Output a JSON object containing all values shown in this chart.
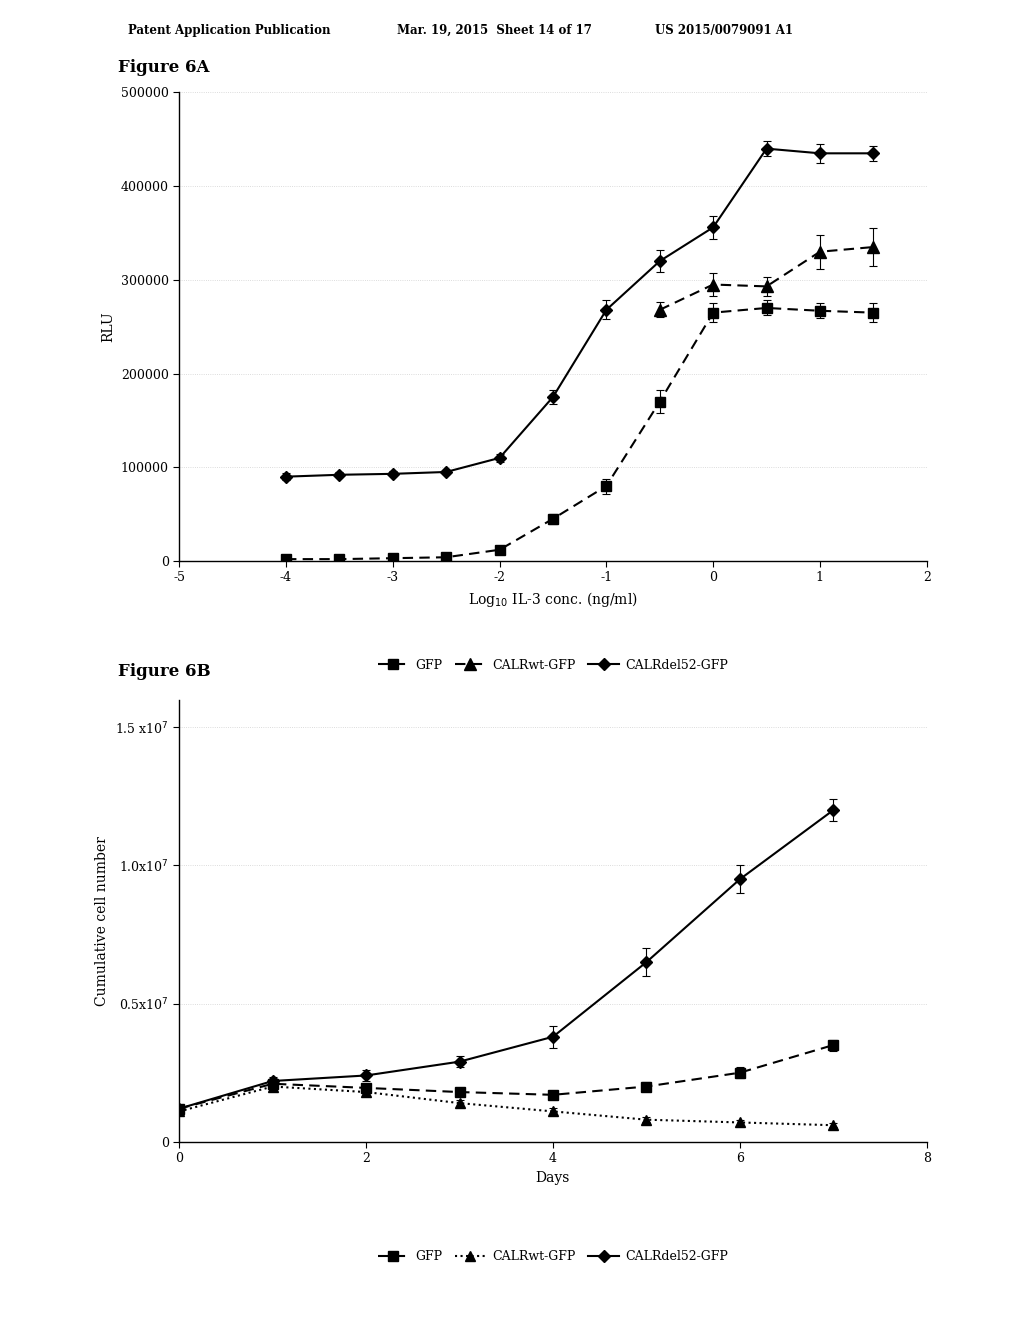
{
  "fig6a_title": "Figure 6A",
  "fig6b_title": "Figure 6B",
  "header_left": "Patent Application Publication",
  "header_mid": "Mar. 19, 2015  Sheet 14 of 17",
  "header_right": "US 2015/0079091 A1",
  "fig6a": {
    "xlabel": "Log$_{10}$ IL-3 conc. (ng/ml)",
    "ylabel": "RLU",
    "xlim": [
      -5,
      2
    ],
    "ylim": [
      0,
      500000
    ],
    "xticks": [
      -5,
      -4,
      -3,
      -2,
      -1,
      0,
      1,
      2
    ],
    "yticks": [
      0,
      100000,
      200000,
      300000,
      400000,
      500000
    ],
    "ytick_labels": [
      "0",
      "100000",
      "200000",
      "300000",
      "400000",
      "500000"
    ],
    "GFP": {
      "x": [
        -4.0,
        -3.5,
        -3.0,
        -2.5,
        -2.0,
        -1.5,
        -1.0,
        -0.5,
        0.0,
        0.5,
        1.0,
        1.5
      ],
      "y": [
        2000,
        2000,
        3000,
        4000,
        12000,
        45000,
        80000,
        170000,
        265000,
        270000,
        267000,
        265000
      ],
      "yerr": [
        800,
        800,
        800,
        1000,
        2000,
        5000,
        8000,
        12000,
        10000,
        8000,
        8000,
        10000
      ]
    },
    "CALRwt": {
      "x": [
        -0.5,
        0.0,
        0.5,
        1.0,
        1.5
      ],
      "y": [
        268000,
        295000,
        293000,
        330000,
        335000
      ],
      "yerr": [
        8000,
        12000,
        10000,
        18000,
        20000
      ]
    },
    "CALRdel52": {
      "x": [
        -4.0,
        -3.5,
        -3.0,
        -2.5,
        -2.0,
        -1.5,
        -1.0,
        -0.5,
        0.0,
        0.5,
        1.0,
        1.5
      ],
      "y": [
        90000,
        92000,
        93000,
        95000,
        110000,
        175000,
        268000,
        320000,
        356000,
        440000,
        435000,
        435000
      ],
      "yerr": [
        3500,
        2500,
        2500,
        2500,
        4000,
        7000,
        10000,
        12000,
        12000,
        8000,
        10000,
        8000
      ]
    }
  },
  "fig6b": {
    "xlabel": "Days",
    "ylabel": "Cumulative cell number",
    "xlim": [
      0,
      8
    ],
    "ylim": [
      0,
      16000000.0
    ],
    "xticks": [
      0,
      2,
      4,
      6,
      8
    ],
    "ytick_vals": [
      0,
      5000000,
      10000000,
      15000000
    ],
    "ytick_labels": [
      "0",
      "0.5x10$^{7}$",
      "1.0x10$^{7}$",
      "1.5 x10$^{7}$"
    ],
    "GFP": {
      "x": [
        0,
        1,
        2,
        3,
        4,
        5,
        6,
        7
      ],
      "y": [
        1200000,
        2100000,
        1950000,
        1800000,
        1700000,
        2000000,
        2500000,
        3500000
      ],
      "yerr": [
        100000,
        150000,
        150000,
        150000,
        150000,
        150000,
        200000,
        200000
      ]
    },
    "CALRwt": {
      "x": [
        0,
        1,
        2,
        3,
        4,
        5,
        6,
        7
      ],
      "y": [
        1100000,
        2000000,
        1800000,
        1400000,
        1100000,
        800000,
        700000,
        600000
      ],
      "yerr": [
        100000,
        150000,
        150000,
        120000,
        120000,
        100000,
        80000,
        80000
      ]
    },
    "CALRdel52": {
      "x": [
        0,
        1,
        2,
        3,
        4,
        5,
        6,
        7
      ],
      "y": [
        1200000,
        2200000,
        2400000,
        2900000,
        3800000,
        6500000,
        9500000,
        12000000
      ],
      "yerr": [
        100000,
        150000,
        200000,
        200000,
        400000,
        500000,
        500000,
        400000
      ]
    }
  },
  "bg_color": "#ffffff",
  "text_color": "#000000",
  "grid_color": "#d0d0d0"
}
